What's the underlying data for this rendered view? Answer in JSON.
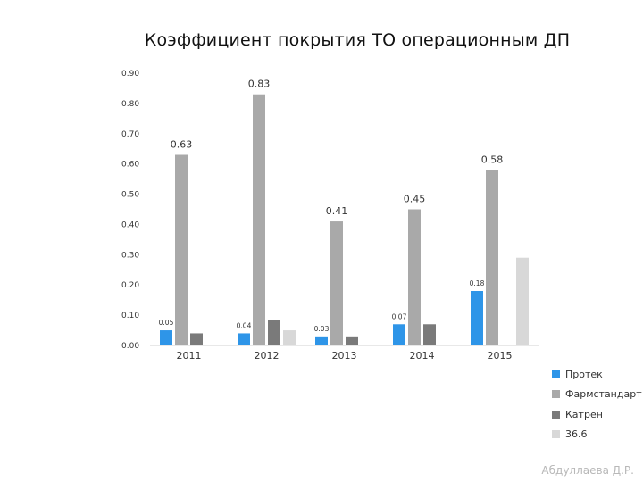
{
  "chart_data": {
    "type": "bar",
    "title": "Коэффициент покрытия ТО операционным ДП",
    "categories": [
      "2011",
      "2012",
      "2013",
      "2014",
      "2015"
    ],
    "ylim": [
      0,
      0.9
    ],
    "yticks": [
      "0.00",
      "0.10",
      "0.20",
      "0.30",
      "0.40",
      "0.50",
      "0.60",
      "0.70",
      "0.80",
      "0.90"
    ],
    "grid": false,
    "legend_position": "bottom-right",
    "series": [
      {
        "name": "Протек",
        "color": "#2e95e8",
        "values": [
          0.05,
          0.04,
          0.03,
          0.07,
          0.18
        ],
        "labels": [
          "0.05",
          "0.04",
          "0.03",
          "0.07",
          "0.18"
        ]
      },
      {
        "name": "Фармстандарт",
        "color": "#a9a9a9",
        "values": [
          0.63,
          0.83,
          0.41,
          0.45,
          0.58
        ],
        "labels": [
          "0.63",
          "0.83",
          "0.41",
          "0.45",
          "0.58"
        ]
      },
      {
        "name": "Катрен",
        "color": "#7a7a7a",
        "values": [
          0.04,
          0.085,
          0.03,
          0.07,
          null
        ],
        "labels": [
          null,
          null,
          null,
          null,
          null
        ]
      },
      {
        "name": "36.6",
        "color": "#d8d8d8",
        "values": [
          null,
          0.05,
          null,
          null,
          0.29
        ],
        "labels": [
          null,
          null,
          null,
          null,
          null
        ]
      }
    ]
  },
  "footer": {
    "author": "Абдуллаева Д.Р."
  }
}
